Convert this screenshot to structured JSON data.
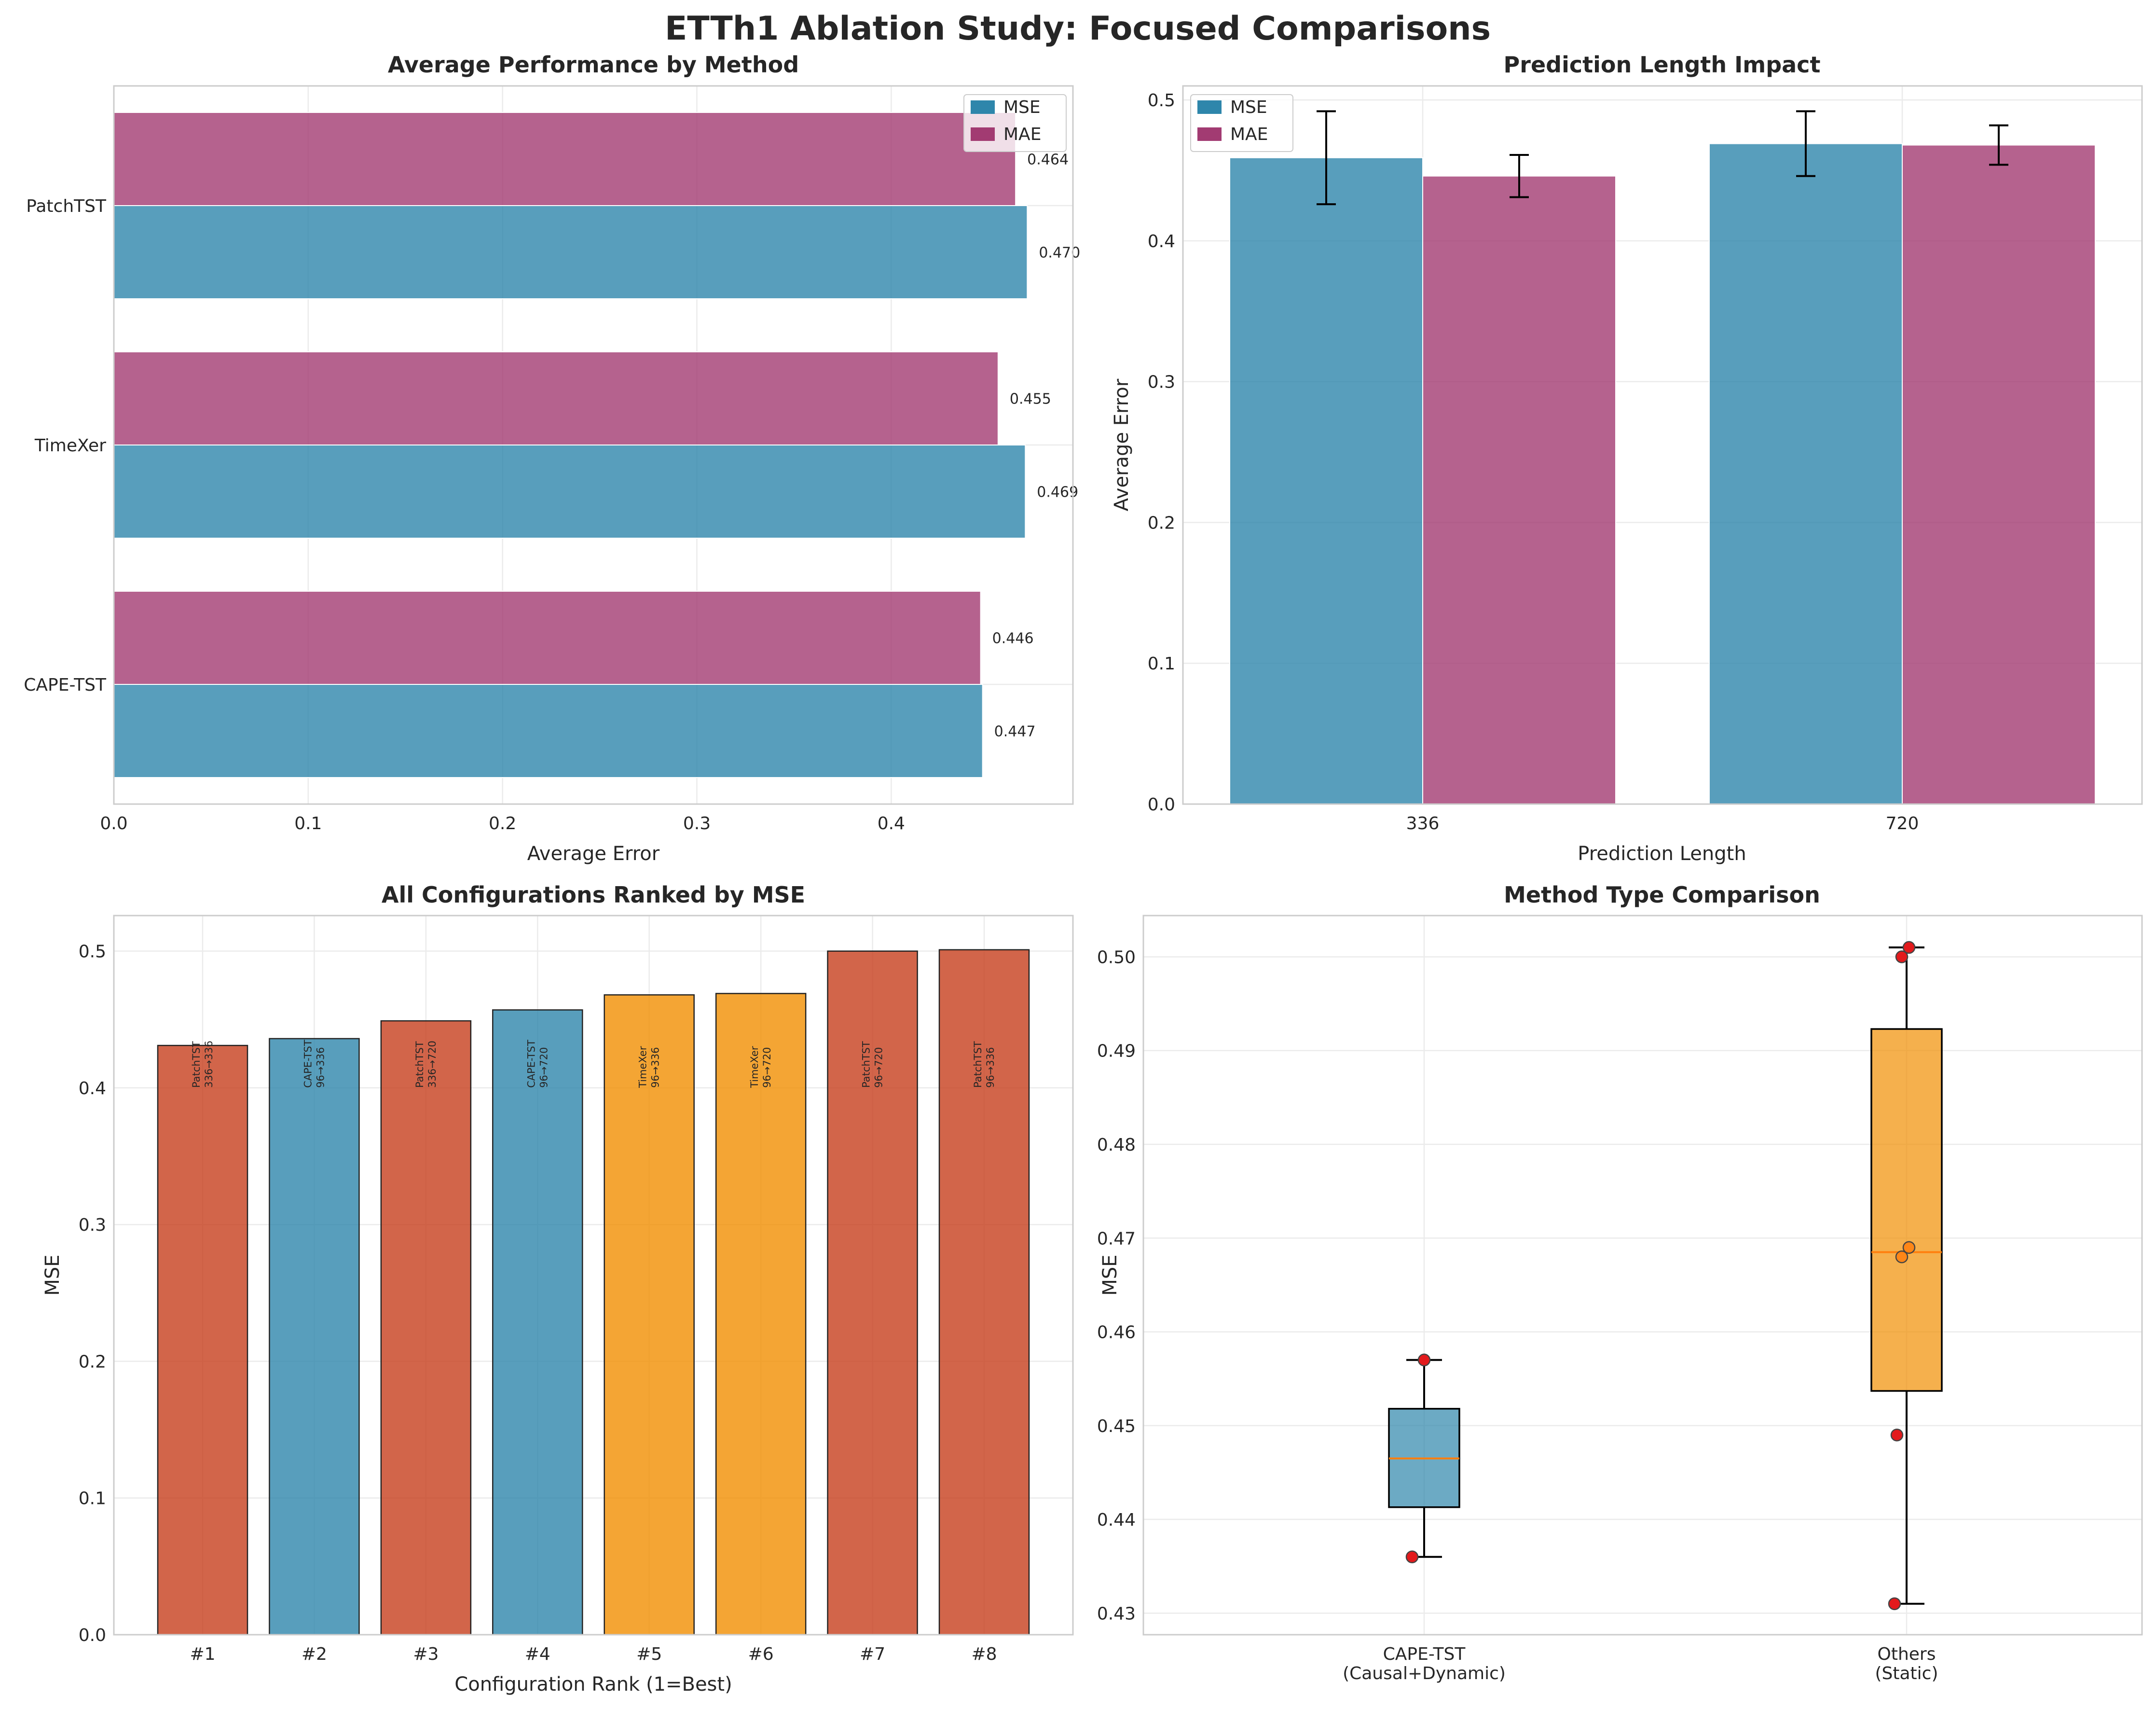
{
  "figure": {
    "title": "ETTh1 Ablation Study: Focused Comparisons"
  },
  "colors": {
    "mse": "#2E86AB",
    "mae": "#A23B72",
    "cape": "#2E86AB",
    "timexer": "#F18F01",
    "patchtst": "#C73E1D",
    "outlier": "#e31a1c",
    "median": "#ff7f0e"
  },
  "chart_data": [
    {
      "id": "method_avg",
      "type": "bar",
      "orientation": "horizontal",
      "title": "Average Performance by Method",
      "xlabel": "Average Error",
      "ylabel": "",
      "xlim": [
        0,
        0.4935
      ],
      "xticks": [
        "0.0",
        "0.1",
        "0.2",
        "0.3",
        "0.4"
      ],
      "categories": [
        "CAPE-TST",
        "TimeXer",
        "PatchTST"
      ],
      "series": [
        {
          "name": "MSE",
          "values": [
            0.447,
            0.469,
            0.47
          ],
          "labels": [
            "0.447",
            "0.469",
            "0.470"
          ]
        },
        {
          "name": "MAE",
          "values": [
            0.446,
            0.455,
            0.464
          ],
          "labels": [
            "0.446",
            "0.455",
            "0.464"
          ]
        }
      ],
      "legend": "top-right",
      "grid": true
    },
    {
      "id": "pred_len",
      "type": "bar",
      "title": "Prediction Length Impact",
      "xlabel": "Prediction Length",
      "ylabel": "Average Error",
      "ylim": [
        0,
        0.51
      ],
      "yticks": [
        "0.0",
        "0.1",
        "0.2",
        "0.3",
        "0.4",
        "0.5"
      ],
      "categories": [
        "336",
        "720"
      ],
      "series": [
        {
          "name": "MSE",
          "values": [
            0.459,
            0.469
          ],
          "err": [
            0.033,
            0.023
          ]
        },
        {
          "name": "MAE",
          "values": [
            0.446,
            0.468
          ],
          "err": [
            0.015,
            0.014
          ]
        }
      ],
      "legend": "top-left",
      "grid": true
    },
    {
      "id": "ranked",
      "type": "bar",
      "title": "All Configurations Ranked by MSE",
      "xlabel": "Configuration Rank (1=Best)",
      "ylabel": "MSE",
      "ylim": [
        0,
        0.526
      ],
      "yticks": [
        "0.0",
        "0.1",
        "0.2",
        "0.3",
        "0.4",
        "0.5"
      ],
      "categories": [
        "#1",
        "#2",
        "#3",
        "#4",
        "#5",
        "#6",
        "#7",
        "#8"
      ],
      "values": [
        0.431,
        0.436,
        0.449,
        0.457,
        0.468,
        0.469,
        0.5,
        0.501
      ],
      "methods": [
        "patchtst",
        "cape",
        "patchtst",
        "cape",
        "timexer",
        "timexer",
        "patchtst",
        "patchtst"
      ],
      "bar_labels": [
        [
          "PatchTST",
          "336→336"
        ],
        [
          "CAPE-TST",
          "96→336"
        ],
        [
          "PatchTST",
          "336→720"
        ],
        [
          "CAPE-TST",
          "96→720"
        ],
        [
          "TimeXer",
          "96→336"
        ],
        [
          "TimeXer",
          "96→720"
        ],
        [
          "PatchTST",
          "96→720"
        ],
        [
          "PatchTST",
          "96→336"
        ]
      ],
      "grid": true
    },
    {
      "id": "box",
      "type": "box",
      "title": "Method Type Comparison",
      "xlabel": "",
      "ylabel": "MSE",
      "ylim": [
        0.4277,
        0.5044
      ],
      "yticks": [
        "0.43",
        "0.44",
        "0.45",
        "0.46",
        "0.47",
        "0.48",
        "0.49",
        "0.50"
      ],
      "groups": [
        {
          "label": [
            "CAPE-TST",
            "(Causal+Dynamic)"
          ],
          "whisker_low": 0.436,
          "q1": 0.4413,
          "median": 0.4465,
          "q3": 0.4518,
          "whisker_high": 0.457,
          "points": [
            0.436,
            0.457
          ],
          "point_kind": [
            "outlier",
            "outlier"
          ],
          "jitter": [
            -0.05,
            0.0
          ]
        },
        {
          "label": [
            "Others",
            "(Static)"
          ],
          "whisker_low": 0.431,
          "q1": 0.4537,
          "median": 0.4685,
          "q3": 0.4923,
          "whisker_high": 0.501,
          "points": [
            0.431,
            0.449,
            0.468,
            0.469,
            0.5,
            0.501
          ],
          "point_kind": [
            "outlier",
            "outlier",
            "inner",
            "inner",
            "outlier",
            "outlier"
          ],
          "jitter": [
            -0.05,
            -0.04,
            -0.02,
            0.01,
            -0.02,
            0.01
          ]
        }
      ],
      "grid": true
    }
  ]
}
